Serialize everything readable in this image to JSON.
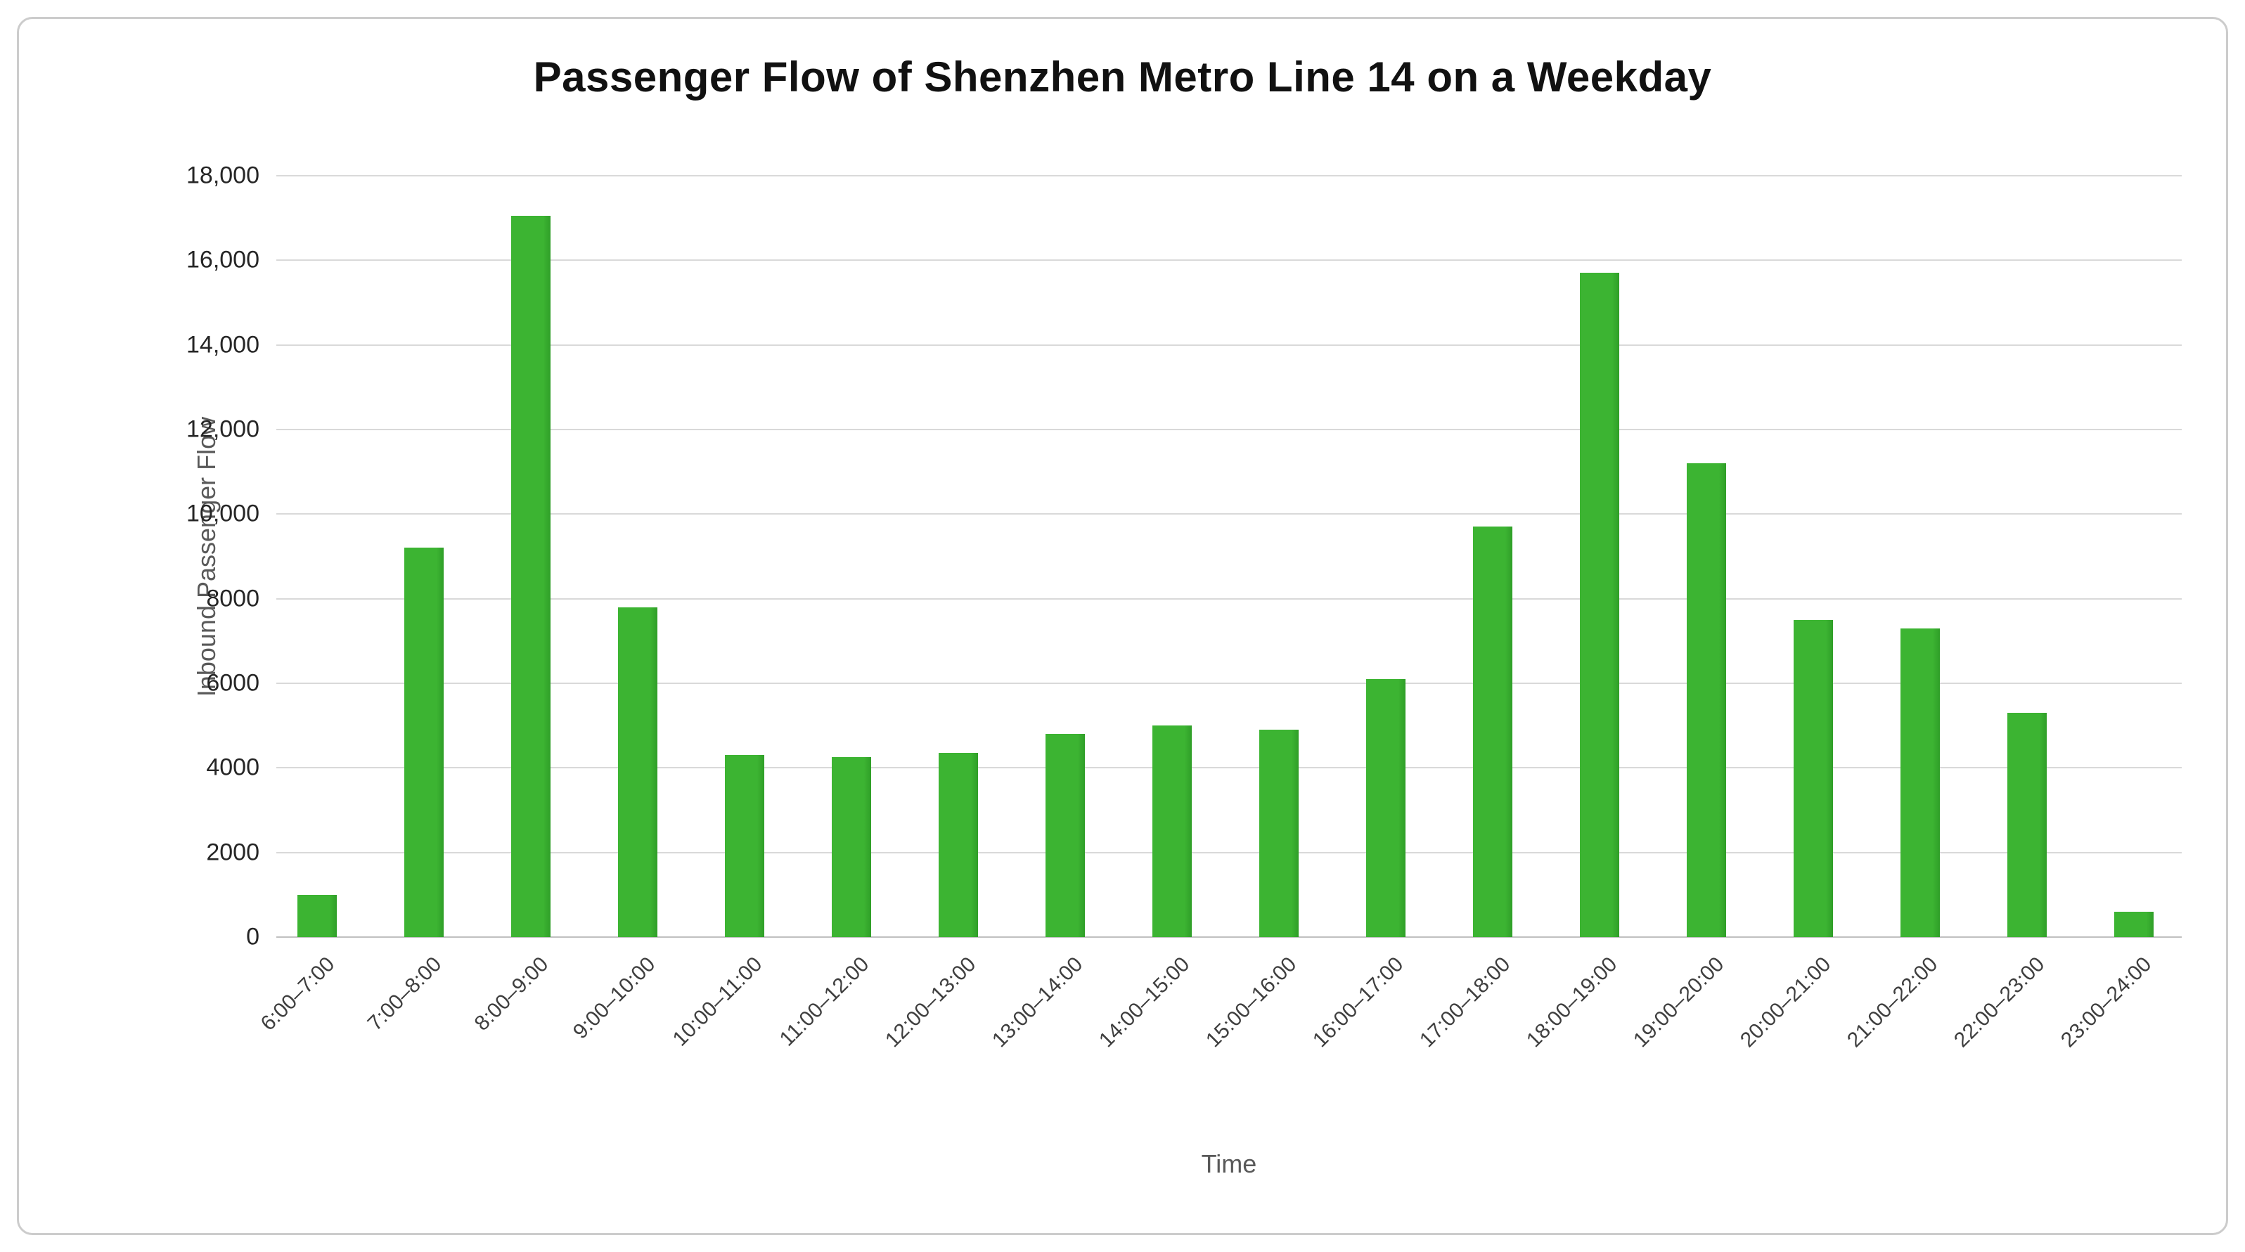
{
  "chart_data": {
    "type": "bar",
    "title": "Passenger Flow of Shenzhen Metro Line 14 on a Weekday",
    "xlabel": "Time",
    "ylabel": "Inbound Passenger Flow",
    "categories": [
      "6:00–7:00",
      "7:00–8:00",
      "8:00–9:00",
      "9:00–10:00",
      "10:00–11:00",
      "11:00–12:00",
      "12:00–13:00",
      "13:00–14:00",
      "14:00–15:00",
      "15:00–16:00",
      "16:00–17:00",
      "17:00–18:00",
      "18:00–19:00",
      "19:00–20:00",
      "20:00–21:00",
      "21:00–22:00",
      "22:00–23:00",
      "23:00–24:00"
    ],
    "values": [
      1000,
      9200,
      17050,
      7800,
      4300,
      4250,
      4350,
      4800,
      5000,
      4900,
      6100,
      9700,
      15700,
      11200,
      7500,
      7300,
      5300,
      600
    ],
    "ylim": [
      0,
      18000
    ],
    "yticks": [
      {
        "value": 0,
        "label": "0"
      },
      {
        "value": 2000,
        "label": "2000"
      },
      {
        "value": 4000,
        "label": "4000"
      },
      {
        "value": 6000,
        "label": "6000"
      },
      {
        "value": 8000,
        "label": "8000"
      },
      {
        "value": 10000,
        "label": "10,000"
      },
      {
        "value": 12000,
        "label": "12,000"
      },
      {
        "value": 14000,
        "label": "14,000"
      },
      {
        "value": 16000,
        "label": "16,000"
      },
      {
        "value": 18000,
        "label": "18,000"
      }
    ],
    "grid": true,
    "legend_position": "none",
    "colors": {
      "bar_fill": "#3cb432",
      "bar_edge_shade": "#2f9e28",
      "gridline": "#d9d9d9",
      "axis_line": "#c0c0c0",
      "title_text": "#111111",
      "tick_text": "#262626",
      "x_tick_text": "#3f3f3f",
      "axis_title_text": "#595959",
      "card_border": "#cccccc"
    }
  }
}
